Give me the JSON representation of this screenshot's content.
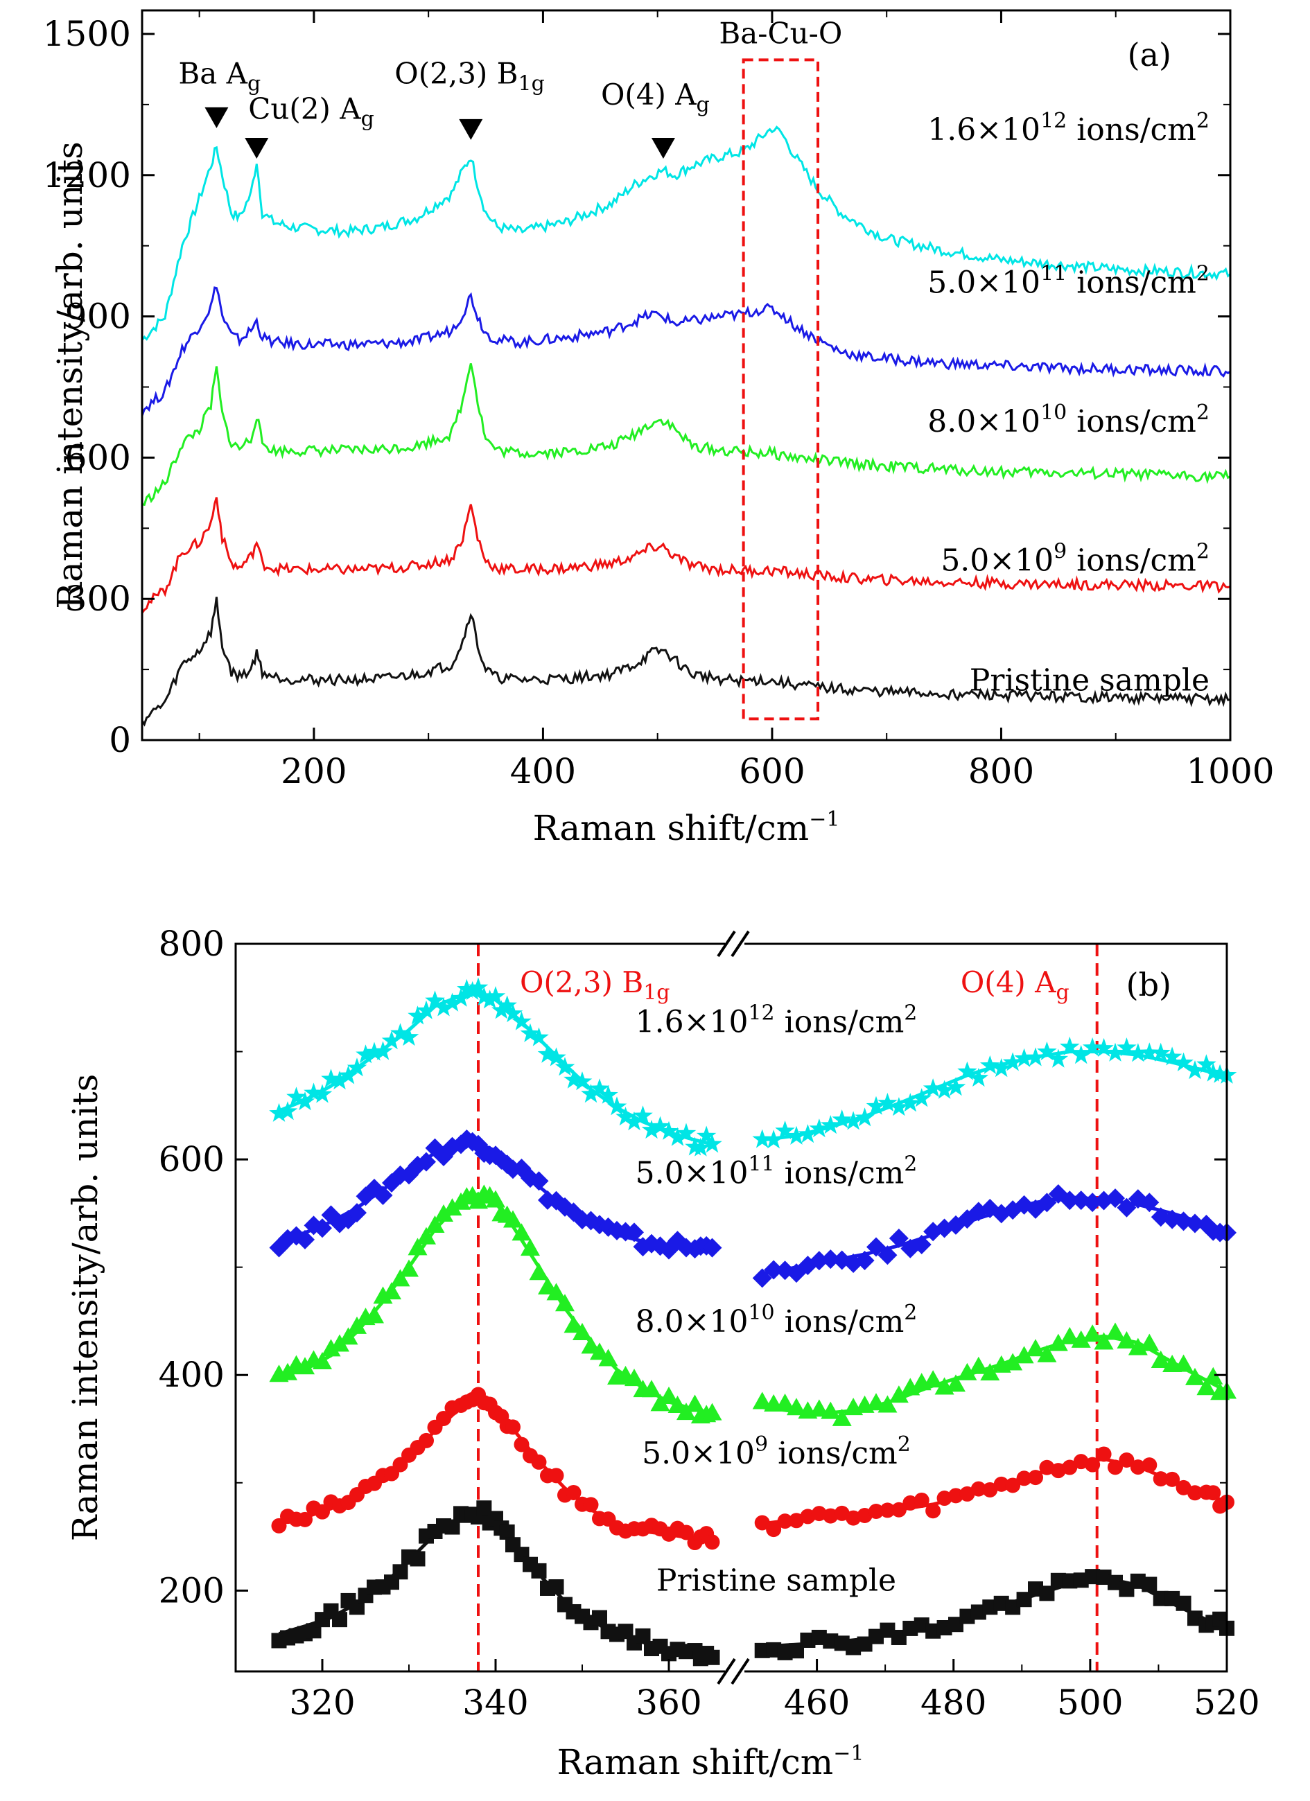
{
  "chart_data": [
    {
      "panel": "(a)",
      "type": "line",
      "xlabel": "Raman shift/cm",
      "xlabel_sup": "−1",
      "ylabel": "Raman intensity/arb. units",
      "xlim": [
        50,
        1000
      ],
      "ylim": [
        0,
        1550
      ],
      "xticks": [
        200,
        400,
        600,
        800,
        1000
      ],
      "yticks": [
        0,
        300,
        600,
        900,
        1200,
        1500
      ],
      "grid": false,
      "box_label": "Ba-Cu-O",
      "box_range_x": [
        575,
        640
      ],
      "box_range_y": [
        45,
        1445
      ],
      "peaks": [
        {
          "main": "Ba A",
          "sub": "g",
          "sup": "",
          "x": 115,
          "y": 1300
        },
        {
          "main": "Cu(2) A",
          "sub": "g",
          "sup": "",
          "x": 150,
          "y": 1235
        },
        {
          "main": "O(2,3) B",
          "sub": "1g",
          "sup": "",
          "x": 337,
          "y": 1275
        },
        {
          "main": "O(4) A",
          "sub": "g",
          "sup": "",
          "x": 505,
          "y": 1235
        }
      ],
      "series": [
        {
          "name": "1.6×10",
          "exp": "12",
          "unit": " ions/cm",
          "unit_sup": "2",
          "color": "#00e5e5",
          "x": [
            50,
            70,
            85,
            100,
            110,
            115,
            120,
            128,
            135,
            145,
            150,
            155,
            165,
            180,
            200,
            230,
            260,
            290,
            320,
            330,
            337,
            343,
            350,
            360,
            380,
            420,
            460,
            480,
            495,
            505,
            515,
            530,
            555,
            575,
            590,
            600,
            608,
            620,
            640,
            660,
            680,
            700,
            750,
            800,
            850,
            900,
            950,
            1000
          ],
          "y": [
            850,
            900,
            1050,
            1150,
            1220,
            1260,
            1200,
            1120,
            1110,
            1160,
            1230,
            1120,
            1100,
            1090,
            1085,
            1080,
            1090,
            1110,
            1160,
            1210,
            1240,
            1180,
            1120,
            1090,
            1080,
            1100,
            1140,
            1180,
            1200,
            1210,
            1200,
            1220,
            1240,
            1250,
            1280,
            1300,
            1290,
            1240,
            1170,
            1120,
            1090,
            1065,
            1040,
            1020,
            1010,
            1000,
            995,
            990
          ]
        },
        {
          "name": "5.0×10",
          "exp": "11",
          "unit": " ions/cm",
          "unit_sup": "2",
          "color": "#1a1ae6",
          "x": [
            50,
            70,
            85,
            100,
            110,
            115,
            120,
            128,
            135,
            145,
            150,
            155,
            165,
            180,
            200,
            230,
            260,
            290,
            320,
            330,
            337,
            343,
            350,
            360,
            380,
            420,
            460,
            480,
            495,
            505,
            515,
            530,
            555,
            575,
            590,
            600,
            608,
            620,
            640,
            660,
            680,
            700,
            750,
            800,
            850,
            900,
            950,
            1000
          ],
          "y": [
            700,
            740,
            830,
            880,
            920,
            970,
            900,
            860,
            850,
            870,
            890,
            855,
            845,
            842,
            840,
            840,
            842,
            848,
            870,
            905,
            945,
            900,
            865,
            850,
            845,
            855,
            870,
            890,
            905,
            900,
            885,
            890,
            900,
            905,
            915,
            915,
            905,
            880,
            850,
            825,
            815,
            810,
            800,
            795,
            790,
            788,
            785,
            783
          ]
        },
        {
          "name": "8.0×10",
          "exp": "10",
          "unit": " ions/cm",
          "unit_sup": "2",
          "color": "#22ee22",
          "x": [
            50,
            70,
            85,
            100,
            110,
            115,
            120,
            128,
            135,
            145,
            150,
            155,
            165,
            180,
            200,
            230,
            260,
            290,
            320,
            330,
            337,
            343,
            350,
            360,
            380,
            420,
            460,
            480,
            495,
            505,
            515,
            530,
            555,
            575,
            590,
            600,
            608,
            620,
            640,
            660,
            680,
            700,
            750,
            800,
            850,
            900,
            950,
            1000
          ],
          "y": [
            500,
            545,
            630,
            660,
            710,
            790,
            690,
            630,
            620,
            640,
            690,
            630,
            615,
            615,
            615,
            615,
            618,
            625,
            650,
            720,
            810,
            720,
            640,
            615,
            610,
            612,
            625,
            650,
            675,
            680,
            660,
            625,
            615,
            612,
            610,
            610,
            605,
            600,
            595,
            590,
            585,
            582,
            575,
            570,
            568,
            565,
            562,
            560
          ]
        },
        {
          "name": "5.0×10",
          "exp": "9",
          "unit": " ions/cm",
          "unit_sup": "2",
          "color": "#ee1111",
          "x": [
            50,
            70,
            85,
            100,
            110,
            115,
            120,
            128,
            135,
            145,
            150,
            155,
            165,
            180,
            200,
            230,
            260,
            290,
            320,
            330,
            337,
            343,
            350,
            360,
            380,
            420,
            460,
            480,
            495,
            505,
            515,
            530,
            555,
            575,
            590,
            600,
            608,
            620,
            640,
            660,
            680,
            700,
            750,
            800,
            850,
            900,
            950,
            1000
          ],
          "y": [
            280,
            320,
            400,
            420,
            460,
            520,
            430,
            375,
            365,
            390,
            420,
            375,
            365,
            362,
            362,
            362,
            364,
            370,
            385,
            430,
            500,
            430,
            380,
            365,
            362,
            365,
            375,
            390,
            410,
            410,
            390,
            370,
            362,
            360,
            360,
            360,
            358,
            355,
            350,
            345,
            342,
            340,
            336,
            333,
            331,
            330,
            328,
            326
          ]
        },
        {
          "name": "Pristine sample",
          "exp": "",
          "unit": "",
          "unit_sup": "",
          "color": "#111111",
          "x": [
            50,
            70,
            85,
            100,
            110,
            115,
            120,
            128,
            135,
            145,
            150,
            155,
            165,
            180,
            200,
            230,
            260,
            290,
            320,
            330,
            337,
            343,
            350,
            360,
            380,
            420,
            460,
            480,
            495,
            505,
            515,
            530,
            555,
            575,
            590,
            600,
            608,
            620,
            640,
            660,
            680,
            700,
            750,
            800,
            850,
            900,
            950,
            1000
          ],
          "y": [
            40,
            80,
            160,
            190,
            230,
            295,
            200,
            145,
            135,
            150,
            185,
            145,
            135,
            130,
            128,
            128,
            130,
            140,
            160,
            210,
            275,
            200,
            150,
            132,
            128,
            130,
            140,
            160,
            185,
            190,
            170,
            140,
            130,
            125,
            128,
            125,
            122,
            118,
            112,
            108,
            105,
            102,
            98,
            95,
            92,
            90,
            88,
            86
          ]
        }
      ]
    },
    {
      "panel": "(b)",
      "type": "scatter",
      "xlabel": "Raman shift/cm",
      "xlabel_sup": "−1",
      "ylabel": "Raman intensity/arb. units",
      "ylim": [
        125,
        800
      ],
      "yticks": [
        200,
        400,
        600,
        800
      ],
      "xlim_left": [
        310,
        366
      ],
      "xlim_right": [
        450,
        520
      ],
      "xticks_left": [
        320,
        340,
        360
      ],
      "xticks_right": [
        460,
        480,
        500,
        520
      ],
      "grid": false,
      "ref_lines": [
        {
          "x": 338,
          "main": "O(2,3) B",
          "sub": "1g"
        },
        {
          "x": 501,
          "main": "O(4) A",
          "sub": "g"
        }
      ],
      "series": [
        {
          "name": "1.6×10",
          "exp": "12",
          "unit": " ions/cm",
          "unit_sup": "2",
          "marker": "star",
          "color": "#00e5e5",
          "x_left": [
            315,
            318,
            321,
            324,
            327,
            330,
            333,
            336,
            338,
            340,
            342,
            345,
            348,
            351,
            354,
            357,
            360,
            363,
            365
          ],
          "y_left": [
            645,
            655,
            668,
            685,
            702,
            720,
            742,
            752,
            755,
            748,
            735,
            712,
            688,
            665,
            648,
            635,
            625,
            618,
            614
          ],
          "x_right": [
            452,
            457,
            462,
            467,
            472,
            477,
            482,
            487,
            492,
            497,
            502,
            507,
            512,
            517,
            520
          ],
          "y_right": [
            618,
            622,
            630,
            640,
            652,
            665,
            678,
            688,
            695,
            700,
            700,
            697,
            690,
            682,
            678
          ]
        },
        {
          "name": "5.0×10",
          "exp": "11",
          "unit": " ions/cm",
          "unit_sup": "2",
          "marker": "diamond",
          "color": "#1a1ae6",
          "x_left": [
            315,
            318,
            321,
            324,
            327,
            330,
            333,
            336,
            338,
            340,
            342,
            345,
            348,
            351,
            354,
            357,
            360,
            363,
            365
          ],
          "y_left": [
            525,
            532,
            542,
            555,
            572,
            590,
            606,
            615,
            615,
            608,
            595,
            575,
            555,
            540,
            530,
            524,
            520,
            518,
            518
          ],
          "x_right": [
            452,
            457,
            462,
            467,
            472,
            477,
            482,
            487,
            492,
            497,
            502,
            507,
            512,
            517,
            520
          ],
          "y_right": [
            494,
            500,
            506,
            512,
            520,
            530,
            542,
            552,
            560,
            565,
            563,
            558,
            550,
            540,
            532
          ]
        },
        {
          "name": "8.0×10",
          "exp": "10",
          "unit": " ions/cm",
          "unit_sup": "2",
          "marker": "triangle",
          "color": "#22ee22",
          "x_left": [
            315,
            318,
            321,
            324,
            327,
            330,
            333,
            336,
            338,
            340,
            342,
            345,
            348,
            351,
            354,
            357,
            360,
            363,
            365
          ],
          "y_left": [
            398,
            405,
            418,
            440,
            468,
            500,
            535,
            560,
            568,
            560,
            538,
            500,
            462,
            430,
            405,
            388,
            375,
            368,
            365
          ],
          "x_right": [
            452,
            457,
            462,
            467,
            472,
            477,
            482,
            487,
            492,
            497,
            502,
            507,
            512,
            517,
            520
          ],
          "y_right": [
            370,
            366,
            365,
            368,
            378,
            390,
            400,
            410,
            422,
            432,
            436,
            430,
            412,
            395,
            385
          ]
        },
        {
          "name": "5.0×10",
          "exp": "9",
          "unit": " ions/cm",
          "unit_sup": "2",
          "marker": "circle",
          "color": "#ee1111",
          "x_left": [
            315,
            318,
            321,
            324,
            327,
            330,
            333,
            336,
            338,
            340,
            342,
            345,
            348,
            351,
            354,
            357,
            360,
            363,
            365
          ],
          "y_left": [
            262,
            268,
            276,
            288,
            305,
            325,
            348,
            370,
            380,
            370,
            350,
            320,
            295,
            275,
            262,
            255,
            252,
            248,
            245
          ],
          "x_right": [
            452,
            457,
            462,
            467,
            472,
            477,
            482,
            487,
            492,
            497,
            502,
            507,
            512,
            517,
            520
          ],
          "y_right": [
            262,
            266,
            268,
            270,
            275,
            280,
            288,
            298,
            308,
            318,
            322,
            315,
            302,
            290,
            282
          ]
        },
        {
          "name": "Pristine sample",
          "exp": "",
          "unit": "",
          "unit_sup": "",
          "marker": "square",
          "color": "#111111",
          "x_left": [
            315,
            318,
            321,
            324,
            327,
            330,
            333,
            336,
            338,
            340,
            342,
            345,
            348,
            351,
            354,
            357,
            360,
            363,
            365
          ],
          "y_left": [
            160,
            167,
            175,
            188,
            205,
            228,
            252,
            268,
            272,
            265,
            245,
            215,
            190,
            172,
            160,
            152,
            146,
            142,
            138
          ],
          "x_right": [
            452,
            457,
            462,
            467,
            472,
            477,
            482,
            487,
            492,
            497,
            502,
            507,
            512,
            517,
            520
          ],
          "y_right": [
            148,
            150,
            152,
            155,
            160,
            166,
            175,
            186,
            196,
            206,
            212,
            205,
            188,
            173,
            165
          ]
        }
      ]
    }
  ]
}
